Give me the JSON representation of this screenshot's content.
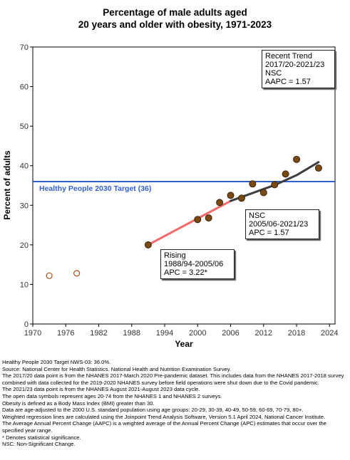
{
  "chart_data": {
    "type": "scatter",
    "title_lines": [
      "Percentage of male adults aged",
      "20 years and older with obesity, 1971-2023"
    ],
    "xlabel": "Year",
    "ylabel": "Percent of adults",
    "xlim": [
      1970,
      2025
    ],
    "ylim": [
      0,
      70
    ],
    "x_ticks": [
      1970,
      1976,
      1982,
      1988,
      1994,
      2000,
      2006,
      2012,
      2018,
      2024
    ],
    "y_ticks": [
      0,
      10,
      20,
      30,
      40,
      50,
      60,
      70
    ],
    "grid": false,
    "series": [
      {
        "marker": "open-circle",
        "points": [
          {
            "x": 1973,
            "y": 12.2
          },
          {
            "x": 1978,
            "y": 12.8
          }
        ]
      },
      {
        "marker": "filled-circle",
        "points": [
          {
            "x": 1991,
            "y": 20.0
          },
          {
            "x": 2000,
            "y": 26.4
          },
          {
            "x": 2002,
            "y": 26.8
          },
          {
            "x": 2004,
            "y": 30.7
          },
          {
            "x": 2006,
            "y": 32.5
          },
          {
            "x": 2008,
            "y": 31.8
          },
          {
            "x": 2010,
            "y": 35.4
          },
          {
            "x": 2012,
            "y": 33.2
          },
          {
            "x": 2014,
            "y": 35.2
          },
          {
            "x": 2016,
            "y": 37.9
          },
          {
            "x": 2018,
            "y": 41.6
          },
          {
            "x": 2022,
            "y": 39.4
          }
        ]
      }
    ],
    "trend_lines": [
      {
        "color": "#f06a6a",
        "points": [
          {
            "x": 1991,
            "y": 20.0
          },
          {
            "x": 2006,
            "y": 31.1
          }
        ]
      },
      {
        "color": "#3d3d3d",
        "points": [
          {
            "x": 2006,
            "y": 31.1
          },
          {
            "x": 2010,
            "y": 33.1
          },
          {
            "x": 2014,
            "y": 35.1
          },
          {
            "x": 2018,
            "y": 37.6
          },
          {
            "x": 2022,
            "y": 40.9
          }
        ]
      }
    ],
    "reference_line": {
      "y": 36.0,
      "label": "Healthy People 2030 Target (36)",
      "color": "#2f5fd0"
    },
    "annotations": [
      {
        "id": "recent",
        "lines": [
          "Recent Trend",
          "2017/20-2021/23",
          "NSC",
          "AAPC =  1.57"
        ]
      },
      {
        "id": "nsc",
        "lines": [
          "NSC",
          "2005/06-2021/23",
          "APC =  1.57"
        ]
      },
      {
        "id": "rising",
        "lines": [
          "Rising",
          "1988/94-2005/06",
          "APC =  3.22*"
        ]
      }
    ]
  },
  "footnotes": [
    "Healthy People 2030 Target NWS-03: 36.0%.",
    "Source: National Center for Health Statistics. National Health and Nutrition Examination Survey.",
    "The 2017/20 data point is from the NHANES 2017-March 2020 Pre-pandemic dataset. This includes data from the NHANES 2017-2018 survey combined with data collected for the 2019-2020 NHANES survey before field operations were shut down due to the Covid pandemic.",
    "The 2021/23 data point is from the NHANES August 2021-August 2023 data cycle.",
    "The open data symbols represent ages 20-74 from the NHANES 1 and NHANES 2 surveys.",
    "Obesity is defined as a Body Mass Index (BMI) greater than 30.",
    "Data are age-adjusted to the 2000 U.S. standard population using age groups: 20-29, 30-39, 40-49, 50-59, 60-69, 70-79, 80+.",
    "Weighted regression lines are calculated using the Joinpoint Trend Analysis Software, Version 5.1 April 2024, National Cancer Institute.",
    "The Average Annual Percent Change (AAPC) is a weighted average of the Annual Percent Change (APC) estimates that occur over the specified year range.",
    "* Denotes statistical significance.",
    "NSC: Non-Significant Change."
  ]
}
